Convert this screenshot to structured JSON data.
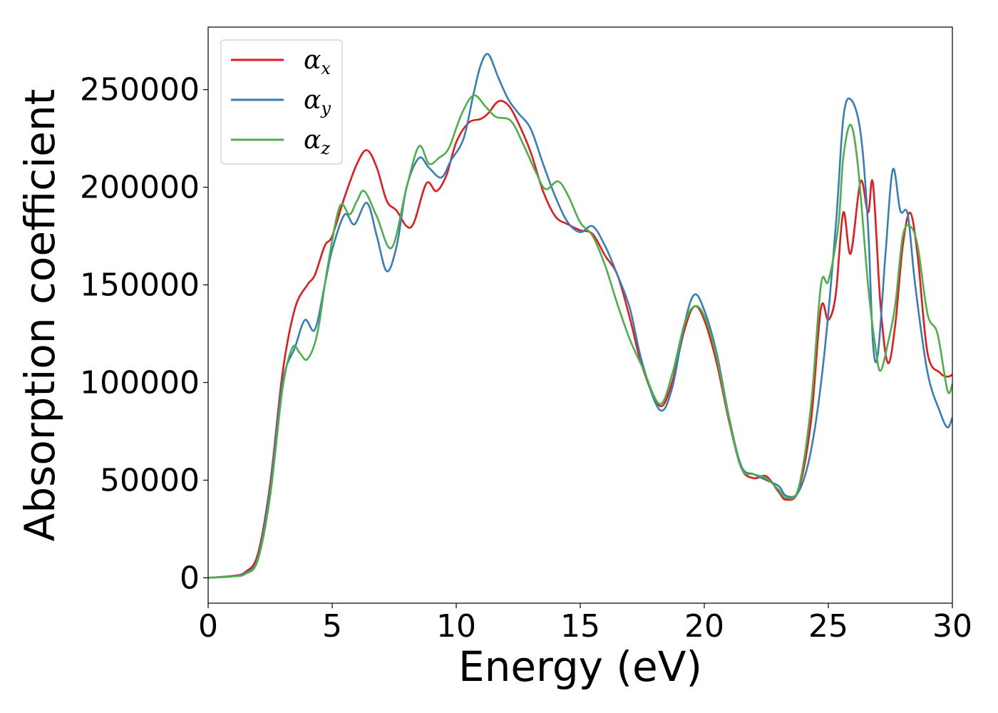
{
  "chart_data": {
    "type": "line",
    "title": "",
    "xlabel": "Energy (eV)",
    "ylabel": "Absorption coefficient",
    "xlim": [
      0,
      30
    ],
    "ylim": [
      -13000,
      282000
    ],
    "xticks": [
      0,
      5,
      10,
      15,
      20,
      25,
      30
    ],
    "xtick_labels": [
      "0",
      "5",
      "10",
      "15",
      "20",
      "25",
      "30"
    ],
    "yticks": [
      0,
      50000,
      100000,
      150000,
      200000,
      250000
    ],
    "ytick_labels": [
      "0",
      "50000",
      "100000",
      "150000",
      "200000",
      "250000"
    ],
    "grid": false,
    "legend": "top-left",
    "series": [
      {
        "name": "α",
        "subscript": "x",
        "color": "#e41a1c",
        "points": [
          [
            0,
            0
          ],
          [
            1.0,
            1000
          ],
          [
            1.5,
            3000
          ],
          [
            2.0,
            12000
          ],
          [
            2.5,
            48000
          ],
          [
            3.0,
            105000
          ],
          [
            3.5,
            138000
          ],
          [
            4.0,
            150000
          ],
          [
            4.3,
            155000
          ],
          [
            4.7,
            170000
          ],
          [
            5.0,
            175000
          ],
          [
            5.5,
            195000
          ],
          [
            6.0,
            212000
          ],
          [
            6.4,
            219000
          ],
          [
            6.8,
            210000
          ],
          [
            7.2,
            193000
          ],
          [
            7.6,
            188000
          ],
          [
            8.0,
            180000
          ],
          [
            8.3,
            182000
          ],
          [
            8.8,
            202000
          ],
          [
            9.2,
            198000
          ],
          [
            9.6,
            206000
          ],
          [
            10.0,
            223000
          ],
          [
            10.5,
            233000
          ],
          [
            11.0,
            235000
          ],
          [
            11.3,
            238000
          ],
          [
            11.7,
            244000
          ],
          [
            12.1,
            242000
          ],
          [
            12.5,
            233000
          ],
          [
            13.0,
            218000
          ],
          [
            13.5,
            198000
          ],
          [
            14.0,
            185000
          ],
          [
            14.5,
            181000
          ],
          [
            15.0,
            178000
          ],
          [
            15.5,
            176000
          ],
          [
            16.0,
            165000
          ],
          [
            16.5,
            155000
          ],
          [
            17.0,
            133000
          ],
          [
            17.5,
            108000
          ],
          [
            18.2,
            88000
          ],
          [
            18.7,
            100000
          ],
          [
            19.2,
            127000
          ],
          [
            19.6,
            139000
          ],
          [
            20.0,
            132000
          ],
          [
            20.5,
            110000
          ],
          [
            21.0,
            80000
          ],
          [
            21.5,
            56000
          ],
          [
            22.0,
            51000
          ],
          [
            22.5,
            52000
          ],
          [
            23.0,
            44000
          ],
          [
            23.3,
            40000
          ],
          [
            23.8,
            45000
          ],
          [
            24.3,
            80000
          ],
          [
            24.7,
            138000
          ],
          [
            25.0,
            132000
          ],
          [
            25.3,
            145000
          ],
          [
            25.6,
            187000
          ],
          [
            25.9,
            166000
          ],
          [
            26.3,
            203000
          ],
          [
            26.6,
            187000
          ],
          [
            26.8,
            202000
          ],
          [
            27.1,
            140000
          ],
          [
            27.4,
            110000
          ],
          [
            27.7,
            130000
          ],
          [
            28.0,
            170000
          ],
          [
            28.3,
            187000
          ],
          [
            28.6,
            165000
          ],
          [
            29.0,
            115000
          ],
          [
            29.5,
            105000
          ],
          [
            29.8,
            103000
          ],
          [
            30.0,
            104000
          ]
        ]
      },
      {
        "name": "α",
        "subscript": "y",
        "color": "#377eb8",
        "points": [
          [
            0,
            0
          ],
          [
            1.0,
            800
          ],
          [
            1.5,
            2500
          ],
          [
            2.0,
            10000
          ],
          [
            2.5,
            45000
          ],
          [
            3.0,
            100000
          ],
          [
            3.5,
            118000
          ],
          [
            3.9,
            132000
          ],
          [
            4.3,
            127000
          ],
          [
            4.7,
            150000
          ],
          [
            5.0,
            168000
          ],
          [
            5.5,
            186000
          ],
          [
            5.9,
            181000
          ],
          [
            6.4,
            192000
          ],
          [
            6.8,
            175000
          ],
          [
            7.2,
            157000
          ],
          [
            7.6,
            170000
          ],
          [
            8.0,
            200000
          ],
          [
            8.5,
            215000
          ],
          [
            8.9,
            210000
          ],
          [
            9.4,
            205000
          ],
          [
            9.8,
            214000
          ],
          [
            10.3,
            225000
          ],
          [
            10.7,
            248000
          ],
          [
            11.0,
            263000
          ],
          [
            11.3,
            268000
          ],
          [
            11.7,
            256000
          ],
          [
            12.1,
            245000
          ],
          [
            12.5,
            238000
          ],
          [
            13.0,
            230000
          ],
          [
            13.5,
            212000
          ],
          [
            14.0,
            195000
          ],
          [
            14.5,
            182000
          ],
          [
            15.0,
            177000
          ],
          [
            15.5,
            180000
          ],
          [
            16.0,
            170000
          ],
          [
            16.5,
            155000
          ],
          [
            17.0,
            138000
          ],
          [
            17.5,
            110000
          ],
          [
            18.2,
            86000
          ],
          [
            18.7,
            97000
          ],
          [
            19.2,
            130000
          ],
          [
            19.6,
            145000
          ],
          [
            20.0,
            137000
          ],
          [
            20.5,
            115000
          ],
          [
            21.0,
            82000
          ],
          [
            21.5,
            57000
          ],
          [
            22.0,
            53000
          ],
          [
            22.5,
            50000
          ],
          [
            23.0,
            47000
          ],
          [
            23.3,
            42000
          ],
          [
            23.8,
            44000
          ],
          [
            24.3,
            65000
          ],
          [
            24.8,
            110000
          ],
          [
            25.3,
            180000
          ],
          [
            25.6,
            235000
          ],
          [
            25.9,
            245000
          ],
          [
            26.3,
            228000
          ],
          [
            26.6,
            180000
          ],
          [
            26.8,
            120000
          ],
          [
            27.0,
            115000
          ],
          [
            27.3,
            165000
          ],
          [
            27.6,
            209000
          ],
          [
            27.9,
            188000
          ],
          [
            28.2,
            186000
          ],
          [
            28.5,
            150000
          ],
          [
            29.0,
            105000
          ],
          [
            29.5,
            85000
          ],
          [
            29.8,
            77000
          ],
          [
            30.0,
            82000
          ]
        ]
      },
      {
        "name": "α",
        "subscript": "z",
        "color": "#4daf4a",
        "points": [
          [
            0,
            0
          ],
          [
            1.0,
            700
          ],
          [
            1.5,
            2000
          ],
          [
            2.0,
            9000
          ],
          [
            2.5,
            42000
          ],
          [
            3.0,
            97000
          ],
          [
            3.4,
            118000
          ],
          [
            3.7,
            115000
          ],
          [
            4.0,
            112000
          ],
          [
            4.4,
            125000
          ],
          [
            4.8,
            158000
          ],
          [
            5.3,
            190000
          ],
          [
            5.7,
            186000
          ],
          [
            6.0,
            193000
          ],
          [
            6.3,
            198000
          ],
          [
            6.8,
            185000
          ],
          [
            7.4,
            169000
          ],
          [
            8.0,
            200000
          ],
          [
            8.5,
            221000
          ],
          [
            8.9,
            212000
          ],
          [
            9.3,
            215000
          ],
          [
            9.7,
            220000
          ],
          [
            10.2,
            237000
          ],
          [
            10.7,
            247000
          ],
          [
            11.2,
            241000
          ],
          [
            11.6,
            236000
          ],
          [
            12.2,
            234000
          ],
          [
            12.7,
            222000
          ],
          [
            13.2,
            208000
          ],
          [
            13.6,
            199000
          ],
          [
            14.1,
            203000
          ],
          [
            14.5,
            196000
          ],
          [
            15.0,
            182000
          ],
          [
            15.5,
            175000
          ],
          [
            16.0,
            160000
          ],
          [
            16.5,
            140000
          ],
          [
            17.0,
            122000
          ],
          [
            17.5,
            108000
          ],
          [
            18.2,
            89000
          ],
          [
            18.7,
            104000
          ],
          [
            19.2,
            130000
          ],
          [
            19.6,
            139000
          ],
          [
            20.0,
            134000
          ],
          [
            20.5,
            113000
          ],
          [
            21.0,
            81000
          ],
          [
            21.5,
            56000
          ],
          [
            22.0,
            53000
          ],
          [
            22.5,
            51000
          ],
          [
            23.0,
            45000
          ],
          [
            23.3,
            41000
          ],
          [
            23.8,
            46000
          ],
          [
            24.3,
            88000
          ],
          [
            24.7,
            150000
          ],
          [
            25.0,
            152000
          ],
          [
            25.4,
            180000
          ],
          [
            25.6,
            215000
          ],
          [
            25.9,
            232000
          ],
          [
            26.2,
            210000
          ],
          [
            26.6,
            150000
          ],
          [
            26.9,
            118000
          ],
          [
            27.1,
            106000
          ],
          [
            27.4,
            120000
          ],
          [
            27.7,
            140000
          ],
          [
            28.0,
            175000
          ],
          [
            28.3,
            180000
          ],
          [
            28.6,
            170000
          ],
          [
            29.0,
            135000
          ],
          [
            29.4,
            125000
          ],
          [
            29.8,
            96000
          ],
          [
            30.0,
            99000
          ]
        ]
      }
    ]
  }
}
